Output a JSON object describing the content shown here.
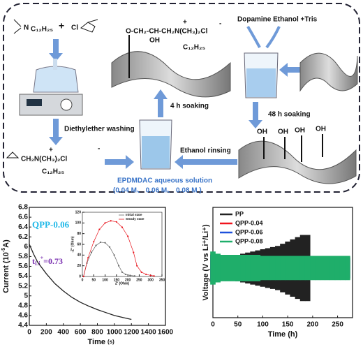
{
  "diagram": {
    "amine_n": "N",
    "amine_chain": "C₁₂H₂₅",
    "plus_sign": "+",
    "chloride": "Cl",
    "washing": "Diethylether washing",
    "product_group": "CH₂N(CH₃)₂Cl",
    "product_plus": "+",
    "product_minus": "-",
    "product_chain": "C₁₂H₂₅",
    "solution": "EPDMDAC aqueous solution",
    "concentrations": "(0.04 M、 0.06 M、 0.08 M )",
    "soak4": "4 h soaking",
    "grafted_group": "O-CH₂-CH-CH₂N(CH₃)₂Cl",
    "grafted_oh": "OH",
    "grafted_chain": "C₁₂H₂₅",
    "grafted_plus": "+",
    "grafted_minus": "-",
    "dopamine": "Dopamine Ethanol +Tris",
    "soak48": "48 h soaking",
    "rinsing": "Ethanol rinsing",
    "hydroxyls": [
      "OH",
      "OH",
      "OH",
      "OH"
    ]
  },
  "chart_data": [
    {
      "type": "line",
      "x_label": "Time",
      "x_unit": "(s)",
      "y_label": [
        "Current (10",
        "-5",
        "A)"
      ],
      "annotation": "QPP-0.06",
      "tli": [
        "t",
        "Li",
        "+",
        "=0.73"
      ],
      "x": [
        0,
        50,
        100,
        200,
        300,
        400,
        500,
        600,
        700,
        800,
        900,
        1000,
        1100,
        1200
      ],
      "series": [
        {
          "color": "#222",
          "values": [
            6.05,
            5.85,
            5.68,
            5.45,
            5.25,
            5.1,
            4.97,
            4.87,
            4.79,
            4.72,
            4.66,
            4.6,
            4.56,
            4.52
          ]
        }
      ],
      "xlim": [
        0,
        1600
      ],
      "xticks": [
        0,
        200,
        400,
        600,
        800,
        1000,
        1200,
        1400,
        1600
      ],
      "ylim": [
        4.4,
        6.8
      ],
      "yticks": [
        4.4,
        4.6,
        4.8,
        5.0,
        5.2,
        5.4,
        5.6,
        5.8,
        6.0,
        6.2,
        6.4,
        6.6,
        6.8
      ]
    },
    {
      "type": "line",
      "x_label": "Z' (Ohm)",
      "y_label": "-Z'' (Ohm)",
      "series": [
        {
          "name": "Initial state",
          "color": "#666",
          "x": [
            5,
            20,
            40,
            60,
            80,
            100,
            120,
            140,
            160,
            175,
            190,
            210,
            230
          ],
          "values": [
            0,
            25,
            45,
            58,
            64,
            63,
            55,
            40,
            20,
            8,
            4,
            2,
            1
          ]
        },
        {
          "name": "Steady state",
          "color": "#e8141c",
          "x": [
            5,
            25,
            50,
            75,
            100,
            125,
            150,
            175,
            200,
            225,
            240,
            260,
            280,
            300,
            315
          ],
          "values": [
            0,
            35,
            65,
            88,
            100,
            104,
            102,
            92,
            75,
            45,
            20,
            8,
            4,
            2,
            1
          ]
        }
      ],
      "xlim": [
        0,
        350
      ],
      "xticks": [
        0,
        50,
        100,
        150,
        200,
        250,
        300,
        350
      ],
      "ylim": [
        0,
        120
      ],
      "yticks": [
        0,
        20,
        40,
        60,
        80,
        100,
        120
      ]
    },
    {
      "type": "band",
      "x_label": "Time (h)",
      "y_label": "Voltage (V vs Li⁺/Li⁺)",
      "x": [
        0,
        10,
        20,
        30,
        40,
        50,
        60,
        70,
        80,
        90,
        100,
        110,
        120,
        130,
        140,
        150,
        160,
        170,
        180,
        190,
        200,
        210,
        220,
        230,
        240,
        250,
        260,
        270
      ],
      "series": [
        {
          "name": "PP",
          "color": "#222",
          "values": [
            0.12,
            0.1,
            0.1,
            0.1,
            0.11,
            0.12,
            0.13,
            0.14,
            0.15,
            0.16,
            0.17,
            0.18,
            0.19,
            0.2,
            0.22,
            0.24,
            0.26,
            0.28,
            0.3,
            0.3,
            null,
            null,
            null,
            null,
            null,
            null,
            null,
            null
          ]
        },
        {
          "name": "QPP-0.04",
          "color": "#f0141e",
          "values": [
            0.13,
            0.11,
            0.1,
            0.1,
            0.1,
            0.1,
            0.1,
            0.1,
            0.1,
            0.1,
            0.1,
            0.1,
            0.1,
            0.1,
            0.1,
            0.1,
            0.1,
            0.1,
            0.1,
            0.1,
            0.1,
            0.1,
            0.1,
            0.1,
            0.1,
            0.1,
            0.1,
            0.1
          ]
        },
        {
          "name": "QPP-0.06",
          "color": "#1e50dc",
          "values": [
            0.12,
            0.1,
            0.09,
            0.09,
            0.09,
            0.09,
            0.09,
            0.09,
            0.09,
            0.09,
            0.09,
            0.09,
            0.09,
            0.09,
            0.09,
            0.09,
            0.09,
            0.09,
            0.09,
            0.09,
            0.09,
            0.09,
            0.09,
            0.09,
            0.09,
            0.09,
            0.09,
            0.09
          ]
        },
        {
          "name": "QPP-0.08",
          "color": "#1fae6a",
          "values": [
            0.15,
            0.13,
            0.12,
            0.12,
            0.12,
            0.12,
            0.12,
            0.12,
            0.12,
            0.12,
            0.11,
            0.11,
            0.11,
            0.11,
            0.11,
            0.11,
            0.11,
            0.11,
            0.11,
            0.11,
            0.11,
            0.11,
            0.11,
            0.11,
            0.11,
            0.11,
            0.11,
            0.11
          ]
        }
      ],
      "xlim": [
        0,
        280
      ],
      "xticks": [
        0,
        50,
        100,
        150,
        200,
        250
      ],
      "ylim": [
        -0.45,
        0.55
      ]
    }
  ]
}
